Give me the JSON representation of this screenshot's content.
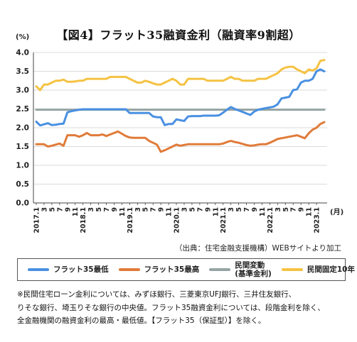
{
  "title": "【図4】フラット35融資金利（融資率9割超）",
  "source": "（出典：住宅金融支援機構）WEBサイトより加工",
  "note": {
    "line1": "※民間住宅ローン金利については、みずほ銀行、三菱東京UFJ銀行、三井住友銀行、",
    "line2": "りそな銀行、埼玉りそな銀行の中央値。フラット35融資金利については、段階金利を除く、",
    "line3": "全金融機関の融資金利の最高・最低値。【フラット35（保証型）】を除く。"
  },
  "chart_data": {
    "type": "line",
    "title": "【図4】フラット35融資金利（融資率9割超）",
    "ylabel": "(%)",
    "xlabel": "(月)",
    "ylim": [
      0,
      4
    ],
    "yticks": [
      "0.0",
      "0.5",
      "1.0",
      "1.5",
      "2.0",
      "2.5",
      "3.0",
      "3.5",
      "4.0"
    ],
    "grid": true,
    "legend_position": "bottom",
    "x": [
      "2017.1",
      "3",
      "5",
      "7",
      "9",
      "11",
      "2018.1",
      "3",
      "5",
      "7",
      "9",
      "11",
      "2019.1",
      "3",
      "5",
      "7",
      "9",
      "11",
      "2020.1",
      "3",
      "5",
      "7",
      "9",
      "11",
      "2021.1",
      "3",
      "5",
      "7",
      "9",
      "11",
      "2022.1",
      "3",
      "5",
      "7",
      "9",
      "11",
      "2023.1"
    ],
    "categories": [
      "2017.1",
      "2017.2",
      "2017.3",
      "2017.4",
      "2017.5",
      "2017.6",
      "2017.7",
      "2017.8",
      "2017.9",
      "2017.10",
      "2017.11",
      "2017.12",
      "2018.1",
      "2018.2",
      "2018.3",
      "2018.4",
      "2018.5",
      "2018.6",
      "2018.7",
      "2018.8",
      "2018.9",
      "2018.10",
      "2018.11",
      "2018.12",
      "2019.1",
      "2019.2",
      "2019.3",
      "2019.4",
      "2019.5",
      "2019.6",
      "2019.7",
      "2019.8",
      "2019.9",
      "2019.10",
      "2019.11",
      "2019.12",
      "2020.1",
      "2020.2",
      "2020.3",
      "2020.4",
      "2020.5",
      "2020.6",
      "2020.7",
      "2020.8",
      "2020.9",
      "2020.10",
      "2020.11",
      "2020.12",
      "2021.1",
      "2021.2",
      "2021.3",
      "2021.4",
      "2021.5",
      "2021.6",
      "2021.7",
      "2021.8",
      "2021.9",
      "2021.10",
      "2021.11",
      "2021.12",
      "2022.1",
      "2022.2",
      "2022.3",
      "2022.4",
      "2022.5",
      "2022.6",
      "2022.7",
      "2022.8",
      "2022.9",
      "2022.10",
      "2022.11",
      "2022.12",
      "2023.1",
      "2023.2",
      "2023.3"
    ],
    "series": [
      {
        "name": "フラット35最低",
        "color": "#4a90e2",
        "values": [
          2.16,
          2.06,
          2.09,
          2.12,
          2.07,
          2.08,
          2.1,
          2.11,
          2.41,
          2.44,
          2.46,
          2.48,
          2.49,
          2.49,
          2.49,
          2.49,
          2.49,
          2.49,
          2.49,
          2.49,
          2.49,
          2.49,
          2.49,
          2.49,
          2.39,
          2.39,
          2.39,
          2.39,
          2.39,
          2.39,
          2.3,
          2.28,
          2.28,
          2.07,
          2.1,
          2.1,
          2.22,
          2.2,
          2.18,
          2.3,
          2.31,
          2.31,
          2.31,
          2.32,
          2.32,
          2.32,
          2.32,
          2.33,
          2.4,
          2.48,
          2.55,
          2.5,
          2.46,
          2.42,
          2.38,
          2.34,
          2.43,
          2.48,
          2.5,
          2.52,
          2.54,
          2.56,
          2.62,
          2.78,
          2.8,
          2.82,
          3.0,
          3.02,
          3.2,
          3.25,
          3.25,
          3.3,
          3.5,
          3.55,
          3.5
        ]
      },
      {
        "name": "フラット35最高",
        "color": "#e07b39",
        "values": [
          1.56,
          1.56,
          1.56,
          1.5,
          1.52,
          1.55,
          1.58,
          1.52,
          1.8,
          1.8,
          1.8,
          1.76,
          1.8,
          1.86,
          1.8,
          1.8,
          1.8,
          1.82,
          1.78,
          1.82,
          1.86,
          1.9,
          1.84,
          1.78,
          1.74,
          1.73,
          1.73,
          1.73,
          1.73,
          1.65,
          1.6,
          1.55,
          1.36,
          1.4,
          1.45,
          1.5,
          1.55,
          1.52,
          1.54,
          1.56,
          1.56,
          1.56,
          1.56,
          1.56,
          1.56,
          1.56,
          1.56,
          1.56,
          1.58,
          1.62,
          1.65,
          1.62,
          1.6,
          1.57,
          1.54,
          1.52,
          1.53,
          1.55,
          1.56,
          1.56,
          1.6,
          1.65,
          1.7,
          1.72,
          1.74,
          1.76,
          1.78,
          1.8,
          1.76,
          1.72,
          1.85,
          1.95,
          2.0,
          2.1,
          2.15
        ]
      },
      {
        "name": "民間変動\n(基準金利)",
        "color": "#95a5a3",
        "values": [
          2.48,
          2.48,
          2.48,
          2.48,
          2.48,
          2.48,
          2.48,
          2.48,
          2.48,
          2.48,
          2.48,
          2.48,
          2.48,
          2.48,
          2.48,
          2.48,
          2.48,
          2.48,
          2.48,
          2.48,
          2.48,
          2.48,
          2.48,
          2.48,
          2.48,
          2.48,
          2.48,
          2.48,
          2.48,
          2.48,
          2.48,
          2.48,
          2.48,
          2.48,
          2.48,
          2.48,
          2.48,
          2.48,
          2.48,
          2.48,
          2.48,
          2.48,
          2.48,
          2.48,
          2.48,
          2.48,
          2.48,
          2.48,
          2.48,
          2.48,
          2.48,
          2.48,
          2.48,
          2.48,
          2.48,
          2.48,
          2.48,
          2.48,
          2.48,
          2.48,
          2.48,
          2.48,
          2.48,
          2.48,
          2.48,
          2.48,
          2.48,
          2.48,
          2.48,
          2.48,
          2.48,
          2.48,
          2.48,
          2.48,
          2.48
        ]
      },
      {
        "name": "民間固定10年",
        "color": "#f5c242",
        "values": [
          3.1,
          3.0,
          3.15,
          3.15,
          3.2,
          3.25,
          3.25,
          3.28,
          3.22,
          3.22,
          3.23,
          3.25,
          3.25,
          3.3,
          3.3,
          3.3,
          3.3,
          3.3,
          3.3,
          3.35,
          3.35,
          3.35,
          3.35,
          3.35,
          3.3,
          3.25,
          3.2,
          3.2,
          3.25,
          3.22,
          3.18,
          3.15,
          3.15,
          3.2,
          3.25,
          3.3,
          3.25,
          3.15,
          3.15,
          3.3,
          3.3,
          3.3,
          3.3,
          3.3,
          3.25,
          3.25,
          3.25,
          3.25,
          3.25,
          3.3,
          3.35,
          3.3,
          3.3,
          3.25,
          3.25,
          3.25,
          3.25,
          3.3,
          3.3,
          3.3,
          3.35,
          3.4,
          3.45,
          3.55,
          3.6,
          3.62,
          3.62,
          3.55,
          3.5,
          3.45,
          3.55,
          3.52,
          3.58,
          3.78,
          3.8
        ]
      }
    ]
  }
}
